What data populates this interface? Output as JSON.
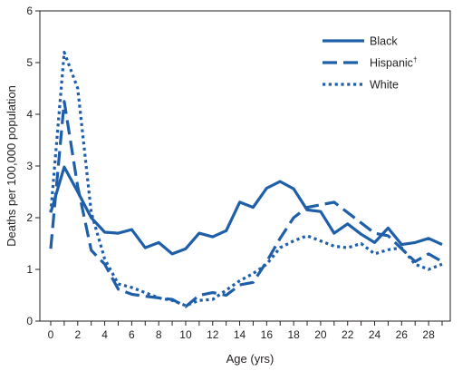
{
  "chart_data": {
    "type": "line",
    "title": "",
    "xlabel": "Age (yrs)",
    "ylabel": "Deaths per 100,000 population",
    "xlim": [
      0,
      29
    ],
    "ylim": [
      0,
      6
    ],
    "x_ticks": [
      0,
      2,
      4,
      6,
      8,
      10,
      12,
      14,
      16,
      18,
      20,
      22,
      24,
      26,
      28
    ],
    "y_ticks": [
      0,
      1,
      2,
      3,
      4,
      5,
      6
    ],
    "grid": false,
    "legend_position": "top-right",
    "x": [
      0,
      1,
      2,
      3,
      4,
      5,
      6,
      7,
      8,
      9,
      10,
      11,
      12,
      13,
      14,
      15,
      16,
      17,
      18,
      19,
      20,
      21,
      22,
      23,
      24,
      25,
      26,
      27,
      28,
      29
    ],
    "series": [
      {
        "name": "Black",
        "legend_sup": "",
        "style": "solid",
        "color": "#1f5fa9",
        "values": [
          2.1,
          2.98,
          2.5,
          2.0,
          1.72,
          1.7,
          1.77,
          1.42,
          1.52,
          1.3,
          1.4,
          1.7,
          1.63,
          1.75,
          2.3,
          2.2,
          2.57,
          2.7,
          2.56,
          2.15,
          2.12,
          1.7,
          1.88,
          1.68,
          1.52,
          1.8,
          1.48,
          1.52,
          1.6,
          1.48
        ]
      },
      {
        "name": "Hispanic",
        "legend_sup": "†",
        "style": "dash",
        "color": "#1f5fa9",
        "values": [
          1.4,
          4.25,
          2.6,
          1.37,
          1.1,
          0.62,
          0.52,
          0.48,
          0.45,
          0.42,
          0.28,
          0.5,
          0.55,
          0.5,
          0.7,
          0.75,
          1.15,
          1.6,
          2.0,
          2.2,
          2.25,
          2.3,
          2.1,
          1.9,
          1.7,
          1.65,
          1.4,
          1.15,
          1.3,
          1.15
        ]
      },
      {
        "name": "White",
        "legend_sup": "",
        "style": "dot",
        "color": "#1f5fa9",
        "values": [
          2.1,
          5.2,
          4.5,
          2.1,
          1.2,
          0.72,
          0.65,
          0.55,
          0.45,
          0.4,
          0.3,
          0.4,
          0.42,
          0.6,
          0.78,
          0.92,
          1.1,
          1.42,
          1.55,
          1.65,
          1.55,
          1.45,
          1.42,
          1.5,
          1.3,
          1.38,
          1.42,
          1.1,
          1.0,
          1.1
        ]
      }
    ]
  }
}
